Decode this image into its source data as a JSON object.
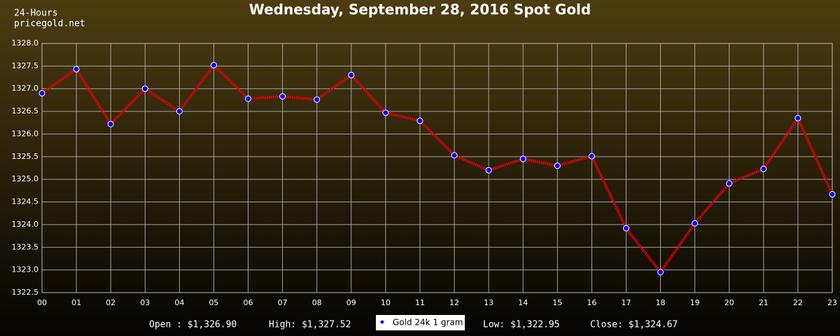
{
  "chart_data": {
    "type": "line",
    "title": "Wednesday, September 28, 2016 Spot Gold",
    "subtitle": [
      "24-Hours",
      "pricegold.net"
    ],
    "categories": [
      "00",
      "01",
      "02",
      "03",
      "04",
      "05",
      "06",
      "07",
      "08",
      "09",
      "10",
      "11",
      "12",
      "13",
      "14",
      "15",
      "16",
      "17",
      "18",
      "19",
      "20",
      "21",
      "22",
      "23"
    ],
    "series": [
      {
        "name": "Gold 24k 1 gram",
        "color": "#e00000",
        "marker_color": "#0000ff",
        "values": [
          1326.9,
          1327.43,
          1326.22,
          1327.0,
          1326.5,
          1327.52,
          1326.78,
          1326.83,
          1326.76,
          1327.3,
          1326.47,
          1326.29,
          1325.53,
          1325.2,
          1325.45,
          1325.3,
          1325.51,
          1323.92,
          1322.95,
          1324.03,
          1324.91,
          1325.23,
          1326.35,
          1324.67
        ]
      }
    ],
    "ylim": [
      1322.5,
      1328.0
    ],
    "yticks": [
      {
        "value": 1322.5,
        "label": "1322.5"
      },
      {
        "value": 1323,
        "label": "1323.0"
      },
      {
        "value": 1323.5,
        "label": "1323.5"
      },
      {
        "value": 1324,
        "label": "1324.0"
      },
      {
        "value": 1324.5,
        "label": "1324.5"
      },
      {
        "value": 1325,
        "label": "1325.0"
      },
      {
        "value": 1325.5,
        "label": "1325.5"
      },
      {
        "value": 1326,
        "label": "1326.0"
      },
      {
        "value": 1326.5,
        "label": "1326.5"
      },
      {
        "value": 1327,
        "label": "1327.0"
      },
      {
        "value": 1327.5,
        "label": "1327.5"
      },
      {
        "value": 1328,
        "label": "1328.0"
      }
    ],
    "grid": true,
    "stats": [
      "Open : $1,326.90",
      "High: $1,327.52",
      "Low: $1,322.95",
      "Close: $1,324.67"
    ]
  }
}
